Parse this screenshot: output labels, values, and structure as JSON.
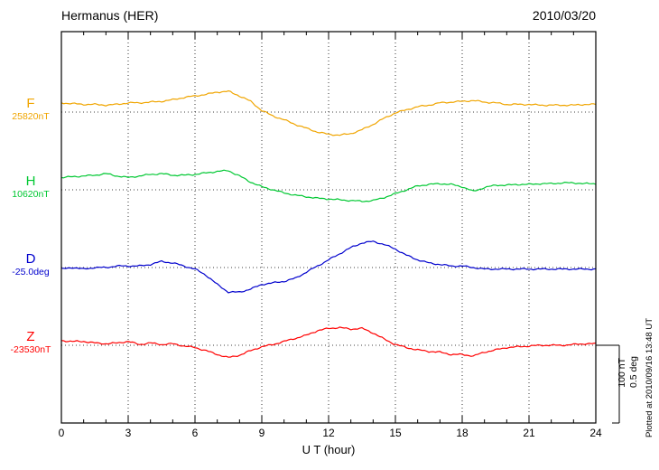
{
  "header": {
    "title": "Hermanus (HER)",
    "date": "2010/03/20"
  },
  "axes": {
    "xlabel": "U T (hour)",
    "x_ticks": [
      0,
      3,
      6,
      9,
      12,
      15,
      18,
      21,
      24
    ],
    "x_range": [
      0,
      24
    ]
  },
  "scale_bar": {
    "labels": [
      "100 nT",
      "0.5 deg"
    ]
  },
  "footer_note": "Plotted at 2010/09/16 13:48 UT",
  "chart_data": {
    "type": "line",
    "title": "Hermanus (HER) magnetogram",
    "date": "2010/03/20",
    "xlabel": "U T (hour)",
    "x_range": [
      0,
      24
    ],
    "x_step_hours": 0.5,
    "grid": "dotted",
    "scale": {
      "nT_per_bar": 100,
      "deg_per_bar": 0.5
    },
    "series": [
      {
        "name": "F",
        "unit": "nT",
        "baseline_label": "25820nT",
        "baseline_value": 25820,
        "color": "#f0a500",
        "offsets": [
          12,
          11,
          10,
          10,
          9,
          10,
          12,
          12,
          13,
          14,
          16,
          19,
          21,
          23,
          26,
          27,
          21,
          14,
          2,
          -5,
          -10,
          -16,
          -21,
          -26,
          -29,
          -30,
          -28,
          -23,
          -16,
          -8,
          -1,
          3,
          7,
          9,
          12,
          13,
          14,
          15,
          13,
          12,
          10,
          10,
          10,
          9,
          9,
          9,
          9,
          10,
          10
        ]
      },
      {
        "name": "H",
        "unit": "nT",
        "baseline_label": "10620nT",
        "baseline_value": 10620,
        "color": "#00c832",
        "offsets": [
          16,
          17,
          18,
          19,
          21,
          18,
          16,
          18,
          20,
          21,
          19,
          19,
          20,
          22,
          24,
          25,
          18,
          10,
          4,
          0,
          -4,
          -7,
          -9,
          -11,
          -12,
          -13,
          -14,
          -15,
          -14,
          -10,
          -5,
          0,
          5,
          7,
          8,
          7,
          4,
          -2,
          3,
          6,
          6,
          7,
          7,
          8,
          8,
          9,
          9,
          8,
          8
        ]
      },
      {
        "name": "D",
        "unit": "deg",
        "baseline_label": "-25.0deg",
        "baseline_value": -25.0,
        "color": "#0000cd",
        "offsets": [
          -0.01,
          0,
          -0.01,
          0,
          0,
          0.01,
          0.01,
          0.01,
          0.02,
          0.04,
          0.03,
          0.01,
          -0.01,
          -0.05,
          -0.11,
          -0.16,
          -0.16,
          -0.14,
          -0.11,
          -0.1,
          -0.09,
          -0.07,
          -0.03,
          0.01,
          0.05,
          0.09,
          0.13,
          0.16,
          0.17,
          0.15,
          0.12,
          0.08,
          0.05,
          0.03,
          0.02,
          0.01,
          0.01,
          0,
          -0.01,
          -0.01,
          -0.01,
          -0.01,
          -0.01,
          -0.01,
          -0.01,
          -0.01,
          -0.01,
          -0.01,
          -0.01
        ]
      },
      {
        "name": "Z",
        "unit": "nT",
        "baseline_label": "-23530nT",
        "baseline_value": -23530,
        "color": "#ff0000",
        "offsets": [
          6,
          5,
          5,
          3,
          2,
          3,
          5,
          1,
          3,
          1,
          2,
          -1,
          -3,
          -7,
          -12,
          -16,
          -13,
          -7,
          -2,
          1,
          5,
          9,
          13,
          19,
          22,
          23,
          21,
          22,
          16,
          8,
          1,
          -3,
          -6,
          -8,
          -9,
          -12,
          -12,
          -14,
          -9,
          -6,
          -3,
          -2,
          -1,
          0,
          0,
          0,
          1,
          2,
          2
        ]
      }
    ]
  }
}
